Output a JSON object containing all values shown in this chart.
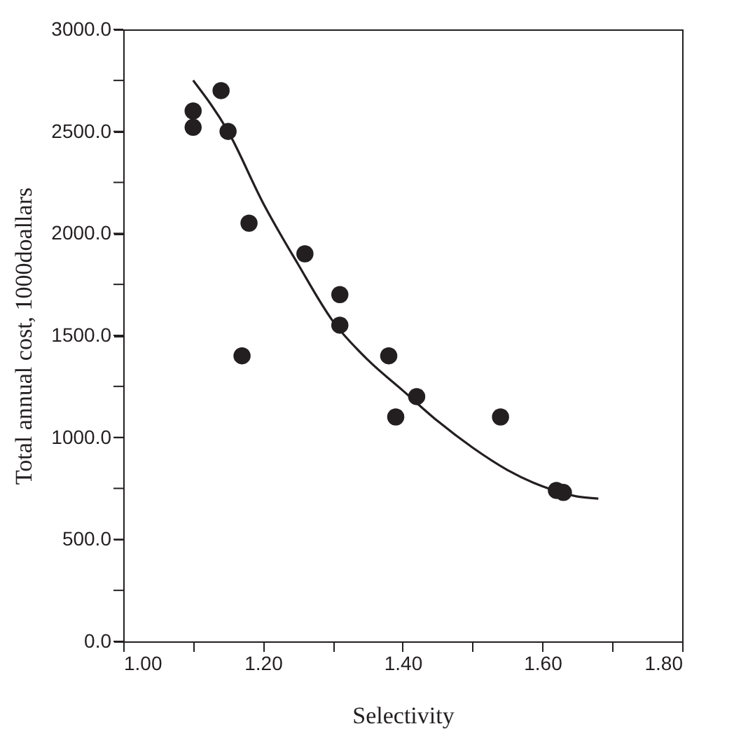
{
  "chart_data": {
    "type": "scatter",
    "xlabel": "Selectivity",
    "ylabel": "Total annual cost, 1000doallars",
    "xlim": [
      1.0,
      1.8
    ],
    "ylim": [
      0,
      3000
    ],
    "xticks": [
      {
        "value": 1.0,
        "label": "1.00"
      },
      {
        "value": 1.1,
        "label": null
      },
      {
        "value": 1.2,
        "label": "1.20"
      },
      {
        "value": 1.3,
        "label": null
      },
      {
        "value": 1.4,
        "label": "1.40"
      },
      {
        "value": 1.5,
        "label": null
      },
      {
        "value": 1.6,
        "label": "1.60"
      },
      {
        "value": 1.7,
        "label": null
      },
      {
        "value": 1.8,
        "label": "1.80"
      }
    ],
    "yticks": [
      {
        "value": 0,
        "label": "0.0"
      },
      {
        "value": 250,
        "label": null
      },
      {
        "value": 500,
        "label": "500.0"
      },
      {
        "value": 750,
        "label": null
      },
      {
        "value": 1000,
        "label": "1000.0"
      },
      {
        "value": 1250,
        "label": null
      },
      {
        "value": 1500,
        "label": "1500.0"
      },
      {
        "value": 1750,
        "label": null
      },
      {
        "value": 2000,
        "label": "2000.0"
      },
      {
        "value": 2250,
        "label": null
      },
      {
        "value": 2500,
        "label": "2500.0"
      },
      {
        "value": 2750,
        "label": null
      },
      {
        "value": 3000,
        "label": "3000.0"
      }
    ],
    "grid": false,
    "marker": "circle",
    "series": [
      {
        "color": "#231f20",
        "x": [
          1.1,
          1.1,
          1.14,
          1.15,
          1.17,
          1.18,
          1.26,
          1.31,
          1.31,
          1.38,
          1.39,
          1.42,
          1.54,
          1.62,
          1.63
        ],
        "values": [
          2600,
          2520,
          2700,
          2500,
          1400,
          2050,
          1900,
          1700,
          1550,
          1400,
          1100,
          1200,
          1100,
          740,
          730
        ]
      },
      {
        "type": "line",
        "color": "#231f20",
        "marker": "none",
        "x": [
          1.1,
          1.15,
          1.2,
          1.25,
          1.3,
          1.35,
          1.4,
          1.45,
          1.5,
          1.55,
          1.6,
          1.65,
          1.68
        ],
        "values": [
          2750,
          2500,
          2150,
          1850,
          1570,
          1380,
          1230,
          1080,
          950,
          840,
          760,
          710,
          700
        ]
      }
    ]
  }
}
